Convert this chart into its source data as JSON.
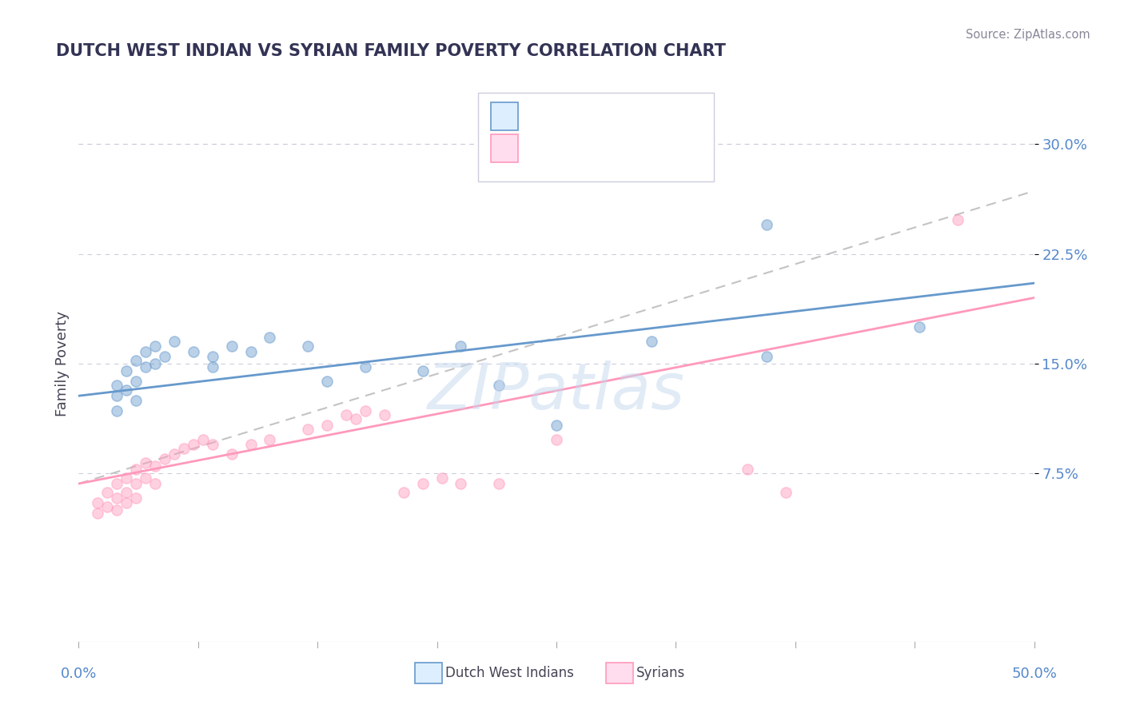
{
  "title": "DUTCH WEST INDIAN VS SYRIAN FAMILY POVERTY CORRELATION CHART",
  "source": "Source: ZipAtlas.com",
  "ylabel": "Family Poverty",
  "ytick_labels": [
    "7.5%",
    "15.0%",
    "22.5%",
    "30.0%"
  ],
  "ytick_values": [
    0.075,
    0.15,
    0.225,
    0.3
  ],
  "xlim": [
    0.0,
    0.5
  ],
  "ylim": [
    -0.04,
    0.34
  ],
  "blue_color": "#6699CC",
  "pink_color": "#FF99BB",
  "blue_scatter": [
    [
      0.02,
      0.135
    ],
    [
      0.02,
      0.128
    ],
    [
      0.02,
      0.118
    ],
    [
      0.025,
      0.145
    ],
    [
      0.025,
      0.132
    ],
    [
      0.03,
      0.152
    ],
    [
      0.03,
      0.138
    ],
    [
      0.03,
      0.125
    ],
    [
      0.035,
      0.158
    ],
    [
      0.035,
      0.148
    ],
    [
      0.04,
      0.162
    ],
    [
      0.04,
      0.15
    ],
    [
      0.045,
      0.155
    ],
    [
      0.05,
      0.165
    ],
    [
      0.06,
      0.158
    ],
    [
      0.07,
      0.155
    ],
    [
      0.07,
      0.148
    ],
    [
      0.08,
      0.162
    ],
    [
      0.09,
      0.158
    ],
    [
      0.1,
      0.168
    ],
    [
      0.12,
      0.162
    ],
    [
      0.13,
      0.138
    ],
    [
      0.15,
      0.148
    ],
    [
      0.18,
      0.145
    ],
    [
      0.2,
      0.162
    ],
    [
      0.22,
      0.135
    ],
    [
      0.25,
      0.108
    ],
    [
      0.3,
      0.165
    ],
    [
      0.36,
      0.155
    ],
    [
      0.36,
      0.245
    ],
    [
      0.44,
      0.175
    ]
  ],
  "pink_scatter": [
    [
      0.01,
      0.055
    ],
    [
      0.01,
      0.048
    ],
    [
      0.015,
      0.062
    ],
    [
      0.015,
      0.052
    ],
    [
      0.02,
      0.068
    ],
    [
      0.02,
      0.058
    ],
    [
      0.02,
      0.05
    ],
    [
      0.025,
      0.072
    ],
    [
      0.025,
      0.062
    ],
    [
      0.025,
      0.055
    ],
    [
      0.03,
      0.078
    ],
    [
      0.03,
      0.068
    ],
    [
      0.03,
      0.058
    ],
    [
      0.035,
      0.082
    ],
    [
      0.035,
      0.072
    ],
    [
      0.04,
      0.08
    ],
    [
      0.04,
      0.068
    ],
    [
      0.045,
      0.085
    ],
    [
      0.05,
      0.088
    ],
    [
      0.055,
      0.092
    ],
    [
      0.06,
      0.095
    ],
    [
      0.065,
      0.098
    ],
    [
      0.07,
      0.095
    ],
    [
      0.08,
      0.088
    ],
    [
      0.09,
      0.095
    ],
    [
      0.1,
      0.098
    ],
    [
      0.12,
      0.105
    ],
    [
      0.13,
      0.108
    ],
    [
      0.14,
      0.115
    ],
    [
      0.145,
      0.112
    ],
    [
      0.15,
      0.118
    ],
    [
      0.16,
      0.115
    ],
    [
      0.17,
      0.062
    ],
    [
      0.18,
      0.068
    ],
    [
      0.19,
      0.072
    ],
    [
      0.2,
      0.068
    ],
    [
      0.22,
      0.068
    ],
    [
      0.25,
      0.098
    ],
    [
      0.35,
      0.078
    ],
    [
      0.37,
      0.062
    ],
    [
      0.46,
      0.248
    ]
  ],
  "blue_line_y_start": 0.128,
  "blue_line_y_end": 0.205,
  "pink_line_y_start": 0.068,
  "pink_line_y_end": 0.195,
  "dashed_line_y_start": 0.068,
  "dashed_line_y_end": 0.268,
  "background_color": "#FFFFFF",
  "grid_color": "#CCCCDD",
  "watermark_color": "#C5D8EE",
  "title_color": "#333355",
  "tick_color": "#5588CC",
  "ylabel_color": "#444455"
}
